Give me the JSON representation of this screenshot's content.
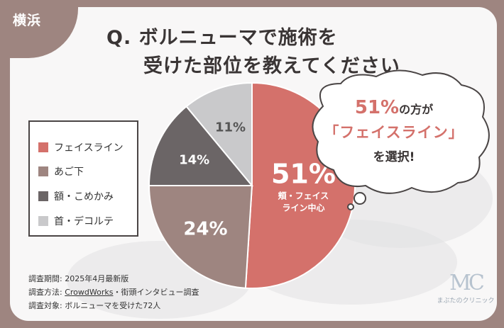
{
  "region_label": "横浜",
  "title": {
    "line1": "Q. ボルニューマで施術を",
    "line2": "受けた部位を教えてください"
  },
  "legend": [
    {
      "label": "フェイスライン",
      "color": "#d4716b"
    },
    {
      "label": "あご下",
      "color": "#9e8580"
    },
    {
      "label": "額・こめかみ",
      "color": "#6b6566"
    },
    {
      "label": "首・デコルテ",
      "color": "#c9c9cb"
    }
  ],
  "chart_data": {
    "type": "pie",
    "slices": [
      {
        "label": "フェイスライン",
        "value": 51,
        "display": "51%",
        "sublabel": "頬・フェイスライン中心",
        "color": "#d4716b"
      },
      {
        "label": "あご下",
        "value": 24,
        "display": "24%",
        "color": "#9e8580"
      },
      {
        "label": "額・こめかみ",
        "value": 14,
        "display": "14%",
        "color": "#6b6566"
      },
      {
        "label": "首・デコルテ",
        "value": 11,
        "display": "11%",
        "color": "#c9c9cb"
      }
    ]
  },
  "slice_sublabel_1": "頬・フェイス",
  "slice_sublabel_2": "ライン中心",
  "callout": {
    "big": "51%",
    "suffix": "の方が",
    "line2": "「フェイスライン」",
    "line3": "を選択!"
  },
  "notes": {
    "period": "調査期間: 2025年4月最新版",
    "method_prefix": "調査方法: ",
    "method_link": "CrowdWorks",
    "method_suffix": "・街頭インタビュー調査",
    "target": "調査対象: ボルニューマを受けた72人"
  },
  "logo": {
    "mark": "MC",
    "name": "まぶたのクリニック"
  }
}
